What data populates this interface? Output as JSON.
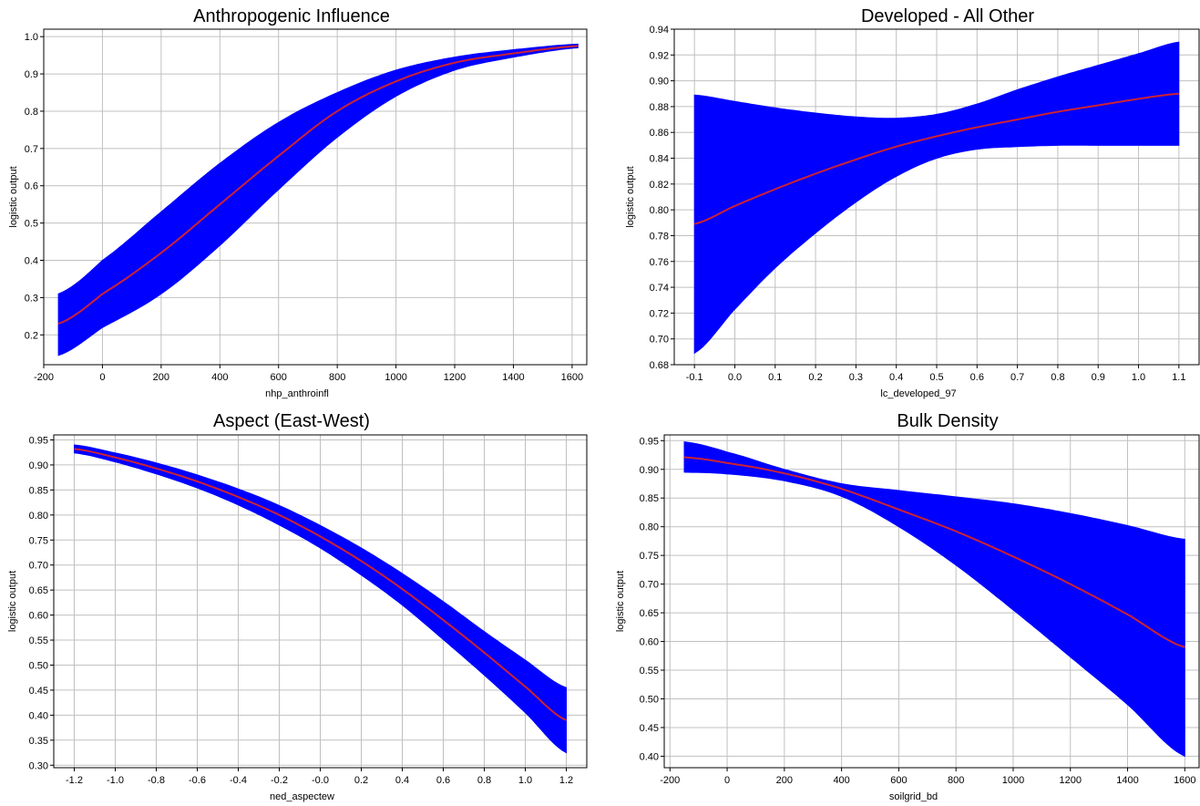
{
  "colors": {
    "band": "#0000ff",
    "line": "#cc2233",
    "grid": "#c0c0c0",
    "axis": "#000000"
  },
  "chart_data": [
    {
      "type": "line",
      "title": "Anthropogenic Influence",
      "xlabel": "nhp_anthroinfl",
      "ylabel": "logistic output",
      "xlim": [
        -200,
        1650
      ],
      "ylim": [
        0.12,
        1.02
      ],
      "xticks": [
        -200,
        0,
        200,
        400,
        600,
        800,
        1000,
        1200,
        1400,
        1600
      ],
      "xtick_labels": [
        "-200",
        "0",
        "200",
        "400",
        "600",
        "800",
        "1000",
        "1200",
        "1400",
        "1600"
      ],
      "yticks": [
        0.2,
        0.3,
        0.4,
        0.5,
        0.6,
        0.7,
        0.8,
        0.9,
        1.0
      ],
      "ytick_labels": [
        "0.2",
        "0.3",
        "0.4",
        "0.5",
        "0.6",
        "0.7",
        "0.8",
        "0.9",
        "1.0"
      ],
      "grid": true,
      "x": [
        -150,
        0,
        200,
        400,
        600,
        800,
        1000,
        1200,
        1400,
        1620
      ],
      "series": [
        {
          "name": "",
          "values": [
            0.23,
            0.31,
            0.42,
            0.55,
            0.68,
            0.8,
            0.88,
            0.93,
            0.955,
            0.975
          ]
        },
        {
          "name": "",
          "values": [
            0.31,
            0.4,
            0.53,
            0.66,
            0.77,
            0.85,
            0.91,
            0.945,
            0.965,
            0.98
          ]
        },
        {
          "name": "",
          "values": [
            0.145,
            0.22,
            0.31,
            0.44,
            0.59,
            0.73,
            0.84,
            0.91,
            0.945,
            0.97
          ]
        }
      ]
    },
    {
      "type": "line",
      "title": "Developed - All Other",
      "xlabel": "lc_developed_97",
      "ylabel": "logistic output",
      "xlim": [
        -0.15,
        1.15
      ],
      "ylim": [
        0.68,
        0.94
      ],
      "xticks": [
        -0.1,
        0.0,
        0.1,
        0.2,
        0.3,
        0.4,
        0.5,
        0.6,
        0.7,
        0.8,
        0.9,
        1.0,
        1.1
      ],
      "xtick_labels": [
        "-0.1",
        "0.0",
        "0.1",
        "0.2",
        "0.3",
        "0.4",
        "0.5",
        "0.6",
        "0.7",
        "0.8",
        "0.9",
        "1.0",
        "1.1"
      ],
      "yticks": [
        0.68,
        0.7,
        0.72,
        0.74,
        0.76,
        0.78,
        0.8,
        0.82,
        0.84,
        0.86,
        0.88,
        0.9,
        0.92,
        0.94
      ],
      "ytick_labels": [
        "0.68",
        "0.70",
        "0.72",
        "0.74",
        "0.76",
        "0.78",
        "0.80",
        "0.82",
        "0.84",
        "0.86",
        "0.88",
        "0.90",
        "0.92",
        "0.94"
      ],
      "grid": true,
      "x": [
        -0.1,
        0.0,
        0.1,
        0.2,
        0.3,
        0.4,
        0.5,
        0.6,
        0.7,
        0.8,
        0.9,
        1.0,
        1.1
      ],
      "series": [
        {
          "name": "",
          "values": [
            0.789,
            0.803,
            0.816,
            0.828,
            0.839,
            0.849,
            0.857,
            0.864,
            0.87,
            0.876,
            0.881,
            0.886,
            0.89
          ]
        },
        {
          "name": "",
          "values": [
            0.889,
            0.884,
            0.879,
            0.875,
            0.872,
            0.871,
            0.874,
            0.882,
            0.893,
            0.903,
            0.912,
            0.921,
            0.93
          ]
        },
        {
          "name": "",
          "values": [
            0.689,
            0.723,
            0.755,
            0.782,
            0.806,
            0.826,
            0.84,
            0.847,
            0.849,
            0.85,
            0.85,
            0.85,
            0.85
          ]
        }
      ]
    },
    {
      "type": "line",
      "title": "Aspect (East-West)",
      "xlabel": "ned_aspectew",
      "ylabel": "logistic output",
      "xlim": [
        -1.3,
        1.3
      ],
      "ylim": [
        0.295,
        0.96
      ],
      "xticks": [
        -1.2,
        -1.0,
        -0.8,
        -0.6,
        -0.4,
        -0.2,
        0.0,
        0.2,
        0.4,
        0.6,
        0.8,
        1.0,
        1.2
      ],
      "xtick_labels": [
        "-1.2",
        "-1.0",
        "-0.8",
        "-0.6",
        "-0.4",
        "-0.2",
        "-0.0",
        "0.2",
        "0.4",
        "0.6",
        "0.8",
        "1.0",
        "1.2"
      ],
      "yticks": [
        0.3,
        0.35,
        0.4,
        0.45,
        0.5,
        0.55,
        0.6,
        0.65,
        0.7,
        0.75,
        0.8,
        0.85,
        0.9,
        0.95
      ],
      "ytick_labels": [
        "0.30",
        "0.35",
        "0.40",
        "0.45",
        "0.50",
        "0.55",
        "0.60",
        "0.65",
        "0.70",
        "0.75",
        "0.80",
        "0.85",
        "0.90",
        "0.95"
      ],
      "grid": true,
      "x": [
        -1.2,
        -1.0,
        -0.8,
        -0.6,
        -0.4,
        -0.2,
        0.0,
        0.2,
        0.4,
        0.6,
        0.8,
        1.0,
        1.2
      ],
      "series": [
        {
          "name": "",
          "values": [
            0.932,
            0.915,
            0.893,
            0.867,
            0.836,
            0.8,
            0.757,
            0.708,
            0.652,
            0.59,
            0.525,
            0.457,
            0.39
          ]
        },
        {
          "name": "",
          "values": [
            0.94,
            0.924,
            0.904,
            0.88,
            0.852,
            0.819,
            0.779,
            0.734,
            0.683,
            0.627,
            0.567,
            0.51,
            0.455
          ]
        },
        {
          "name": "",
          "values": [
            0.924,
            0.906,
            0.882,
            0.854,
            0.82,
            0.78,
            0.734,
            0.68,
            0.62,
            0.551,
            0.48,
            0.405,
            0.325
          ]
        }
      ]
    },
    {
      "type": "line",
      "title": "Bulk Density",
      "xlabel": "soilgrid_bd",
      "ylabel": "logistic output",
      "xlim": [
        -220,
        1650
      ],
      "ylim": [
        0.38,
        0.96
      ],
      "xticks": [
        -200,
        0,
        200,
        400,
        600,
        800,
        1000,
        1200,
        1400,
        1600
      ],
      "xtick_labels": [
        "-200",
        "0",
        "200",
        "400",
        "600",
        "800",
        "1000",
        "1200",
        "1400",
        "1600"
      ],
      "yticks": [
        0.4,
        0.45,
        0.5,
        0.55,
        0.6,
        0.65,
        0.7,
        0.75,
        0.8,
        0.85,
        0.9,
        0.95
      ],
      "ytick_labels": [
        "0.40",
        "0.45",
        "0.50",
        "0.55",
        "0.60",
        "0.65",
        "0.70",
        "0.75",
        "0.80",
        "0.85",
        "0.90",
        "0.95"
      ],
      "grid": true,
      "x": [
        -150,
        0,
        200,
        400,
        600,
        800,
        1000,
        1200,
        1400,
        1600
      ],
      "series": [
        {
          "name": "",
          "values": [
            0.921,
            0.911,
            0.893,
            0.866,
            0.83,
            0.792,
            0.748,
            0.7,
            0.647,
            0.59
          ]
        },
        {
          "name": "",
          "values": [
            0.948,
            0.93,
            0.9,
            0.875,
            0.863,
            0.852,
            0.84,
            0.823,
            0.802,
            0.778
          ]
        },
        {
          "name": "",
          "values": [
            0.895,
            0.892,
            0.88,
            0.853,
            0.8,
            0.733,
            0.655,
            0.573,
            0.49,
            0.4
          ]
        }
      ]
    }
  ]
}
